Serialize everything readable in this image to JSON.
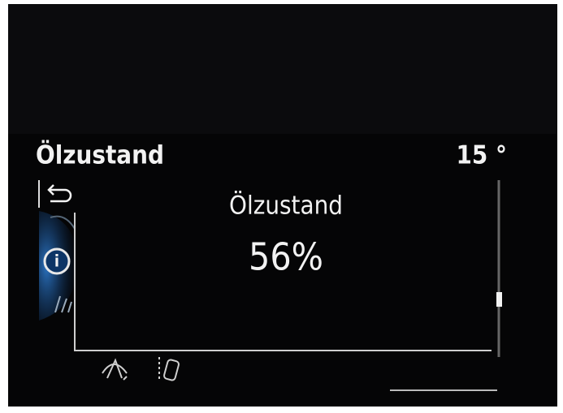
{
  "header": {
    "title": "Ölzustand",
    "temperature": "15 °"
  },
  "panel": {
    "title": "Ölzustand",
    "value": "56%"
  }
}
